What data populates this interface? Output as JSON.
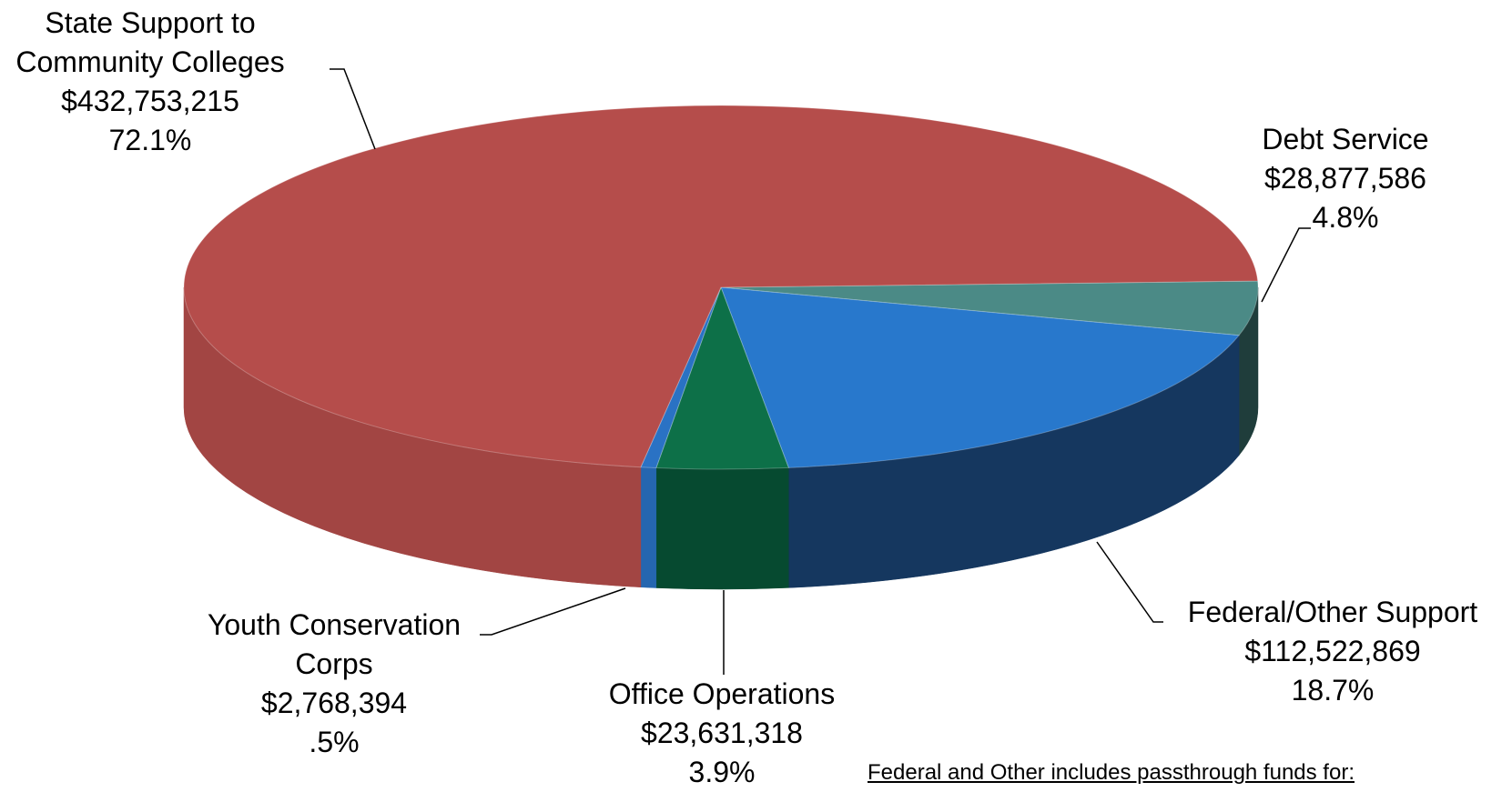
{
  "chart_data": {
    "type": "pie3d",
    "categories": [
      "Debt Service",
      "Federal/Other Support",
      "Office Operations",
      "Youth Conservation Corps",
      "State Support to Community Colleges"
    ],
    "values": [
      28877586,
      112522869,
      23631318,
      2768394,
      432753215
    ],
    "value_labels": [
      "$28,877,586",
      "$112,522,869",
      "$23,631,318",
      "$2,768,394",
      "$432,753,215"
    ],
    "percents": [
      4.8,
      18.7,
      3.9,
      0.5,
      72.1
    ],
    "percent_labels": [
      "4.8%",
      "18.7%",
      "3.9%",
      ".5%",
      "72.1%"
    ],
    "colors": [
      "#4b8a86",
      "#2878cc",
      "#0d7048",
      "#2a72c4",
      "#b54d4b"
    ],
    "side_colors": [
      "#1f3d3b",
      "#15375f",
      "#064a30",
      "#2566b0",
      "#a24543"
    ],
    "note": "Federal and Other includes passthrough funds for:"
  }
}
